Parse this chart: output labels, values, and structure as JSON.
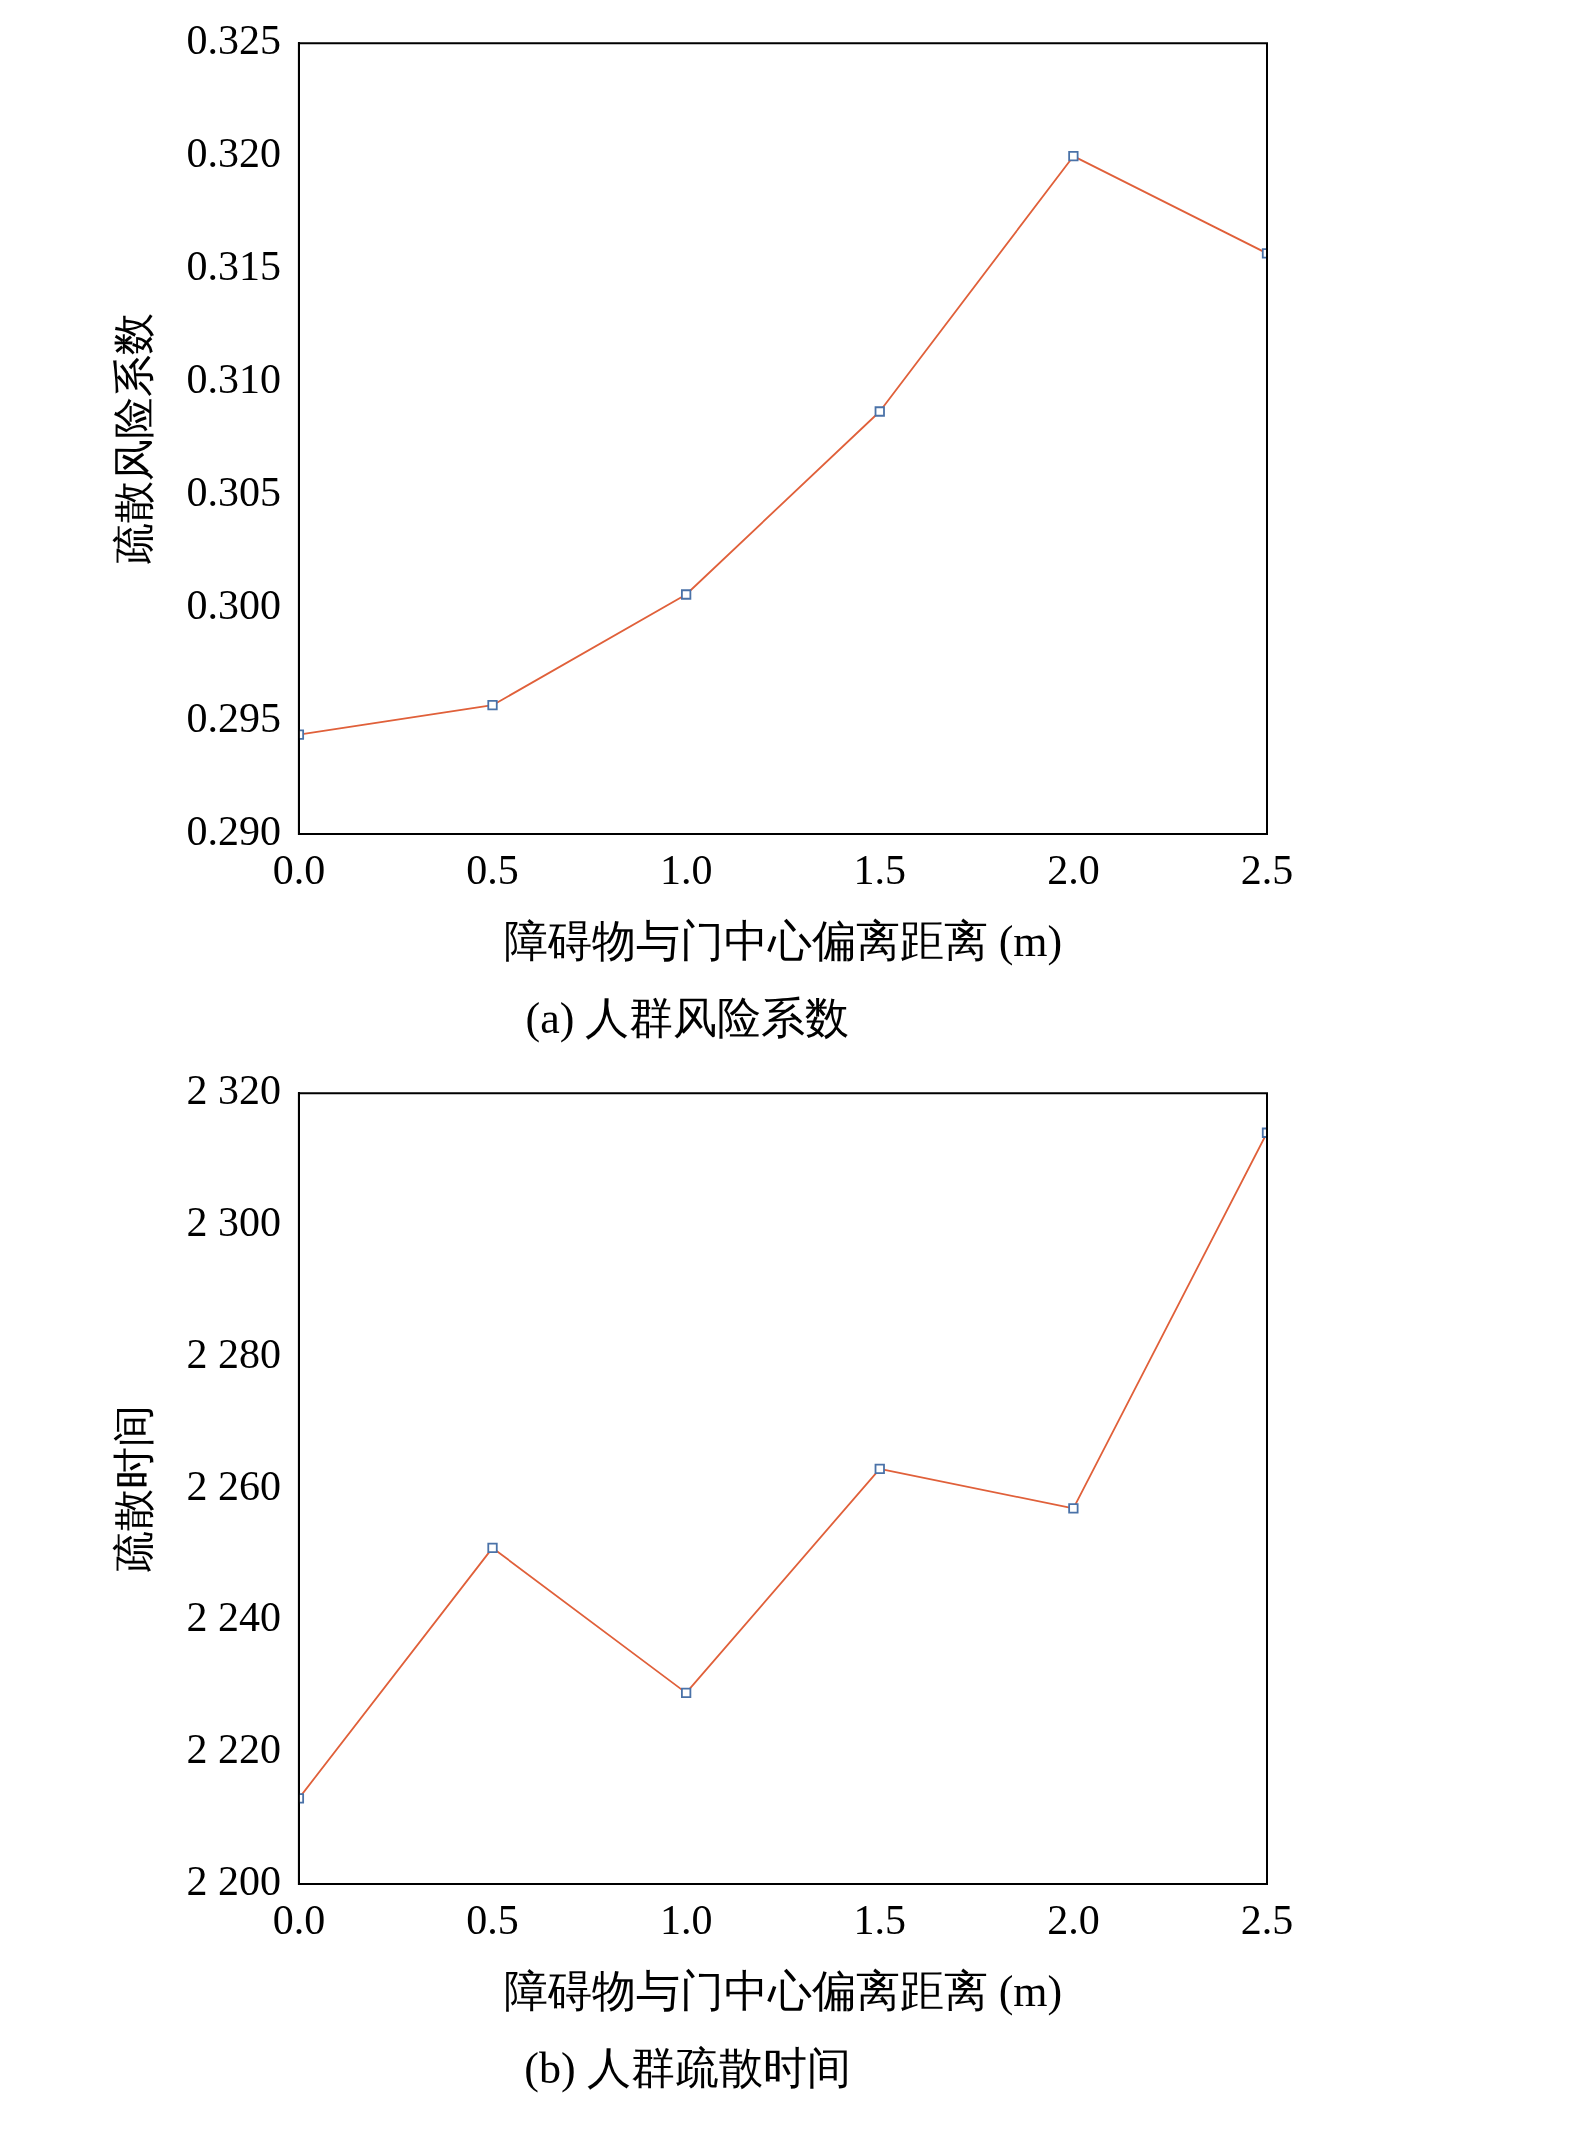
{
  "chart_data": [
    {
      "type": "line",
      "title": "(a) 人群风险系数",
      "xlabel": "障碍物与门中心偏离距离 (m)",
      "ylabel": "疏散风险系数",
      "x": [
        0,
        0.5,
        1,
        1.5,
        2,
        2.5
      ],
      "series": [
        {
          "color": "#e0603a",
          "values": [
            0.2944,
            0.2957,
            0.3006,
            0.3087,
            0.32,
            0.3157
          ]
        }
      ],
      "xlim": [
        0,
        2.5
      ],
      "xticks": [
        {
          "value": 0,
          "label": "0.0"
        },
        0.5,
        {
          "value": 1,
          "label": "1.0"
        },
        1.5,
        {
          "value": 2,
          "label": "2.0"
        },
        2.5
      ],
      "ylim": [
        0.29,
        0.325
      ],
      "yticks": [
        {
          "value": 0.29,
          "label": "0.290"
        },
        0.295,
        {
          "value": 0.3,
          "label": "0.300"
        },
        0.305,
        {
          "value": 0.31,
          "label": "0.310"
        },
        0.315,
        {
          "value": 0.32,
          "label": "0.320"
        },
        0.325
      ],
      "marker": "square",
      "line_style": "solid",
      "grid": false,
      "legend": false
    },
    {
      "type": "line",
      "title": "(b) 人群疏散时间",
      "xlabel": "障碍物与门中心偏离距离 (m)",
      "ylabel": "疏散时间",
      "x": [
        0,
        0.5,
        1,
        1.5,
        2,
        2.5
      ],
      "series": [
        {
          "color": "#e0603a",
          "values": [
            2213,
            2251,
            2229,
            2263,
            2257,
            2314
          ]
        }
      ],
      "xlim": [
        0,
        2.5
      ],
      "xticks": [
        {
          "value": 0,
          "label": "0.0"
        },
        0.5,
        {
          "value": 1,
          "label": "1.0"
        },
        1.5,
        {
          "value": 2,
          "label": "2.0"
        },
        2.5
      ],
      "ylim": [
        2200,
        2320
      ],
      "yticks": [
        {
          "value": 2200,
          "label": "2 200"
        },
        {
          "value": 2220,
          "label": "2 220"
        },
        {
          "value": 2240,
          "label": "2 240"
        },
        {
          "value": 2260,
          "label": "2 260"
        },
        {
          "value": 2280,
          "label": "2 280"
        },
        {
          "value": 2300,
          "label": "2 300"
        },
        {
          "value": 2320,
          "label": "2 320"
        }
      ],
      "marker": "square",
      "line_style": "solid",
      "grid": false,
      "legend": false
    }
  ]
}
